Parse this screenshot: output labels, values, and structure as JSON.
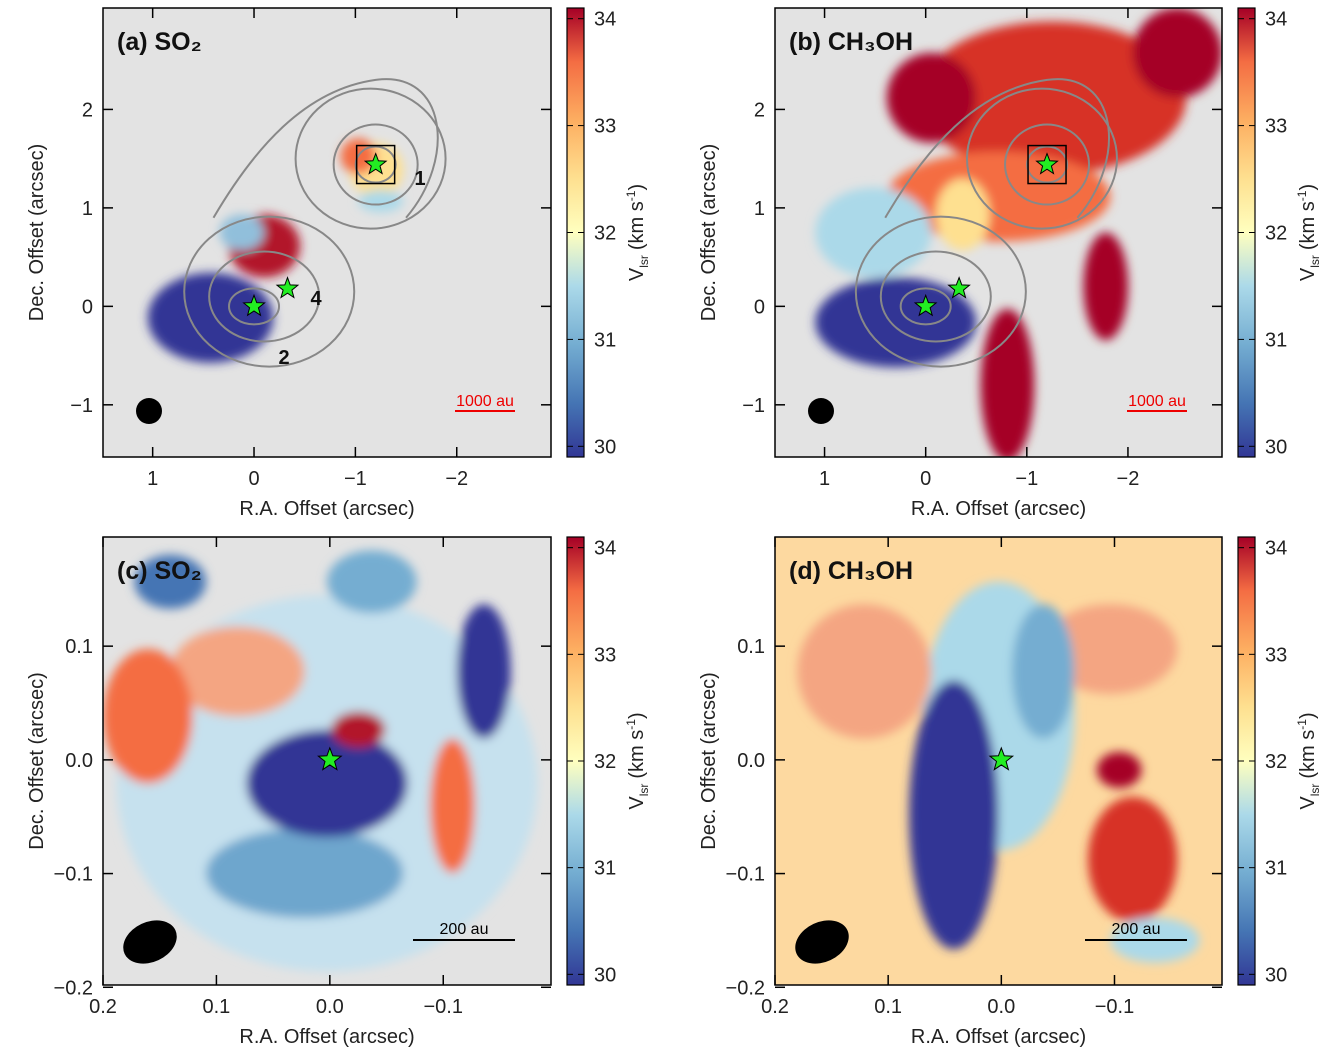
{
  "chart_data": [
    {
      "type": "map",
      "title": "(a) SO₂",
      "xlabel": "R.A. Offset (arcsec)",
      "ylabel": "Dec. Offset (arcsec)",
      "xlim": [
        1.49,
        -2.93
      ],
      "ylim": [
        -1.53,
        3.03
      ],
      "xticks": [
        1,
        0,
        {
          "value": -1,
          "label": "−1"
        },
        {
          "value": -2,
          "label": "−2"
        }
      ],
      "yticks": [
        {
          "value": -1,
          "label": "−1"
        },
        0,
        1,
        2
      ],
      "colorbar": {
        "label": [
          "V",
          "lsr",
          "(km s",
          "-1",
          ")"
        ],
        "clim": [
          29.9,
          34.1
        ],
        "ticks": [
          30,
          31,
          32,
          33,
          34
        ]
      },
      "scale_bar": "1000 au",
      "annotations": [
        "1",
        "4",
        "2"
      ]
    },
    {
      "type": "map",
      "title": "(b) CH₃OH",
      "xlabel": "R.A. Offset (arcsec)",
      "ylabel": "Dec. Offset (arcsec)",
      "xlim": [
        1.49,
        -2.93
      ],
      "ylim": [
        -1.53,
        3.03
      ],
      "xticks": [
        1,
        0,
        {
          "value": -1,
          "label": "−1"
        },
        {
          "value": -2,
          "label": "−2"
        }
      ],
      "yticks": [
        {
          "value": -1,
          "label": "−1"
        },
        0,
        1,
        2
      ],
      "colorbar": {
        "label": [
          "V",
          "lsr",
          "(km s",
          "-1",
          ")"
        ],
        "clim": [
          29.9,
          34.1
        ],
        "ticks": [
          30,
          31,
          32,
          33,
          34
        ]
      },
      "scale_bar": "1000 au"
    },
    {
      "type": "map",
      "title": "(c) SO₂",
      "xlabel": "R.A. Offset (arcsec)",
      "ylabel": "Dec. Offset (arcsec)",
      "xlim": [
        0.2,
        -0.195
      ],
      "ylim": [
        -0.198,
        0.196
      ],
      "xticks": [
        0.2,
        0.1,
        {
          "value": 0,
          "label": "0.0"
        },
        {
          "value": -0.1,
          "label": "−0.1"
        }
      ],
      "yticks": [
        {
          "value": -0.2,
          "label": "−0.2"
        },
        {
          "value": -0.1,
          "label": "−0.1"
        },
        {
          "value": 0,
          "label": "0.0"
        },
        0.1
      ],
      "colorbar": {
        "label": [
          "V",
          "lsr",
          "(km s",
          "-1",
          ")"
        ],
        "clim": [
          29.9,
          34.1
        ],
        "ticks": [
          30,
          31,
          32,
          33,
          34
        ]
      },
      "scale_bar": "200 au"
    },
    {
      "type": "map",
      "title": "(d) CH₃OH",
      "xlabel": "R.A. Offset (arcsec)",
      "ylabel": "Dec. Offset (arcsec)",
      "xlim": [
        0.2,
        -0.195
      ],
      "ylim": [
        -0.198,
        0.196
      ],
      "xticks": [
        0.2,
        0.1,
        {
          "value": 0,
          "label": "0.0"
        },
        {
          "value": -0.1,
          "label": "−0.1"
        }
      ],
      "yticks": [
        {
          "value": -0.2,
          "label": "−0.2"
        },
        {
          "value": -0.1,
          "label": "−0.1"
        },
        {
          "value": 0,
          "label": "0.0"
        },
        0.1
      ],
      "colorbar": {
        "label": [
          "V",
          "lsr",
          "(km s",
          "-1",
          ")"
        ],
        "clim": [
          29.9,
          34.1
        ],
        "ticks": [
          30,
          31,
          32,
          33,
          34
        ]
      },
      "scale_bar": "200 au"
    }
  ]
}
